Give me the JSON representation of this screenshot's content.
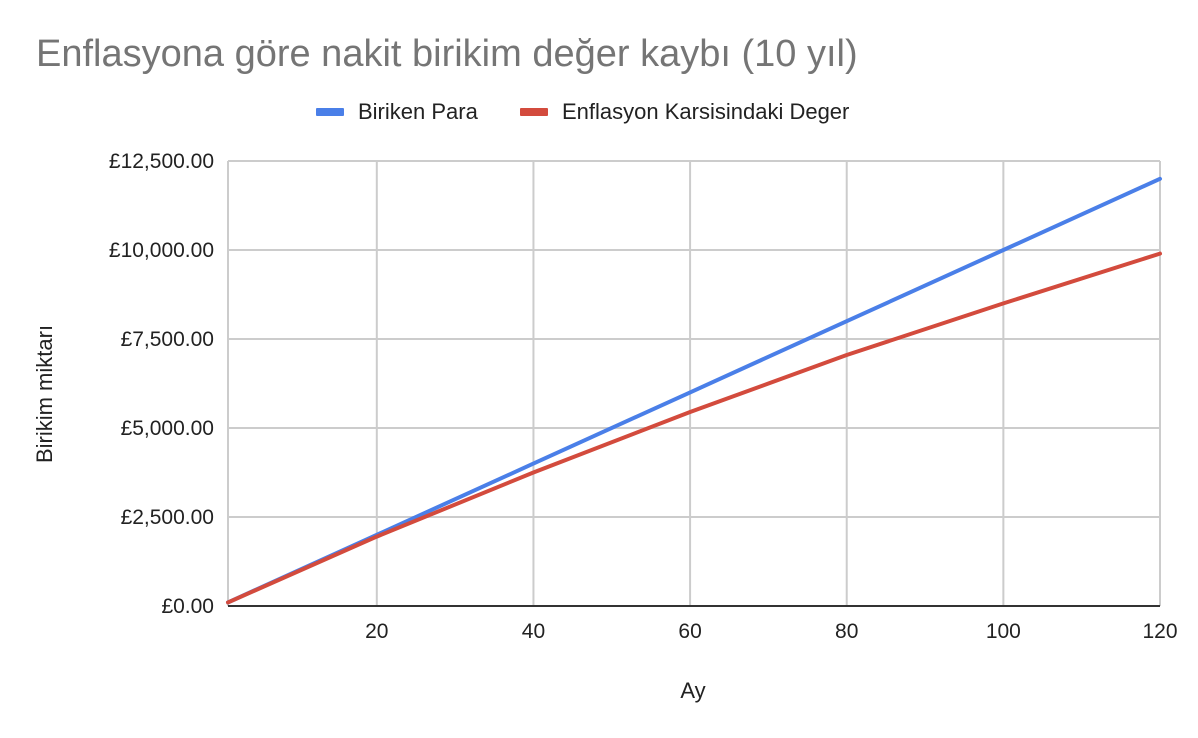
{
  "chart_data": {
    "type": "line",
    "title": "Enflasyona göre nakit birikim değer kaybı (10 yıl)",
    "xlabel": "Ay",
    "ylabel": "Birikim miktarı",
    "xlim": [
      1,
      120
    ],
    "ylim": [
      0,
      12500
    ],
    "x_ticks": [
      20,
      40,
      60,
      80,
      100,
      120
    ],
    "y_ticks": [
      0,
      2500,
      5000,
      7500,
      10000,
      12500
    ],
    "y_tick_labels": [
      "£0.00",
      "£2,500.00",
      "£5,000.00",
      "£7,500.00",
      "£10,000.00",
      "£12,500.00"
    ],
    "grid": true,
    "legend_position": "top",
    "x": [
      1,
      20,
      40,
      60,
      80,
      100,
      120
    ],
    "series": [
      {
        "name": "Biriken Para",
        "color": "#4a7fe8",
        "values": [
          100,
          2000,
          4000,
          6000,
          8000,
          10000,
          12000
        ]
      },
      {
        "name": "Enflasyon Karsisindaki Deger",
        "color": "#d34b3d",
        "values": [
          100,
          1950,
          3750,
          5450,
          7050,
          8500,
          9900
        ]
      }
    ]
  }
}
